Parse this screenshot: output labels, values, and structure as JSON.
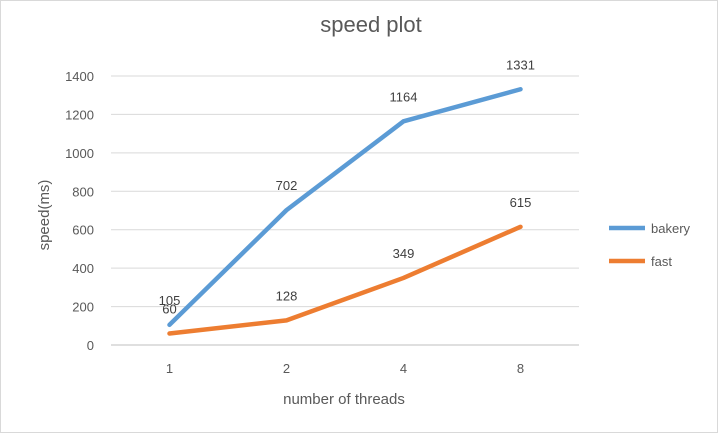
{
  "chart_data": {
    "type": "line",
    "title": "speed plot",
    "xlabel": "number of threads",
    "ylabel": "speed(ms)",
    "categories": [
      "1",
      "2",
      "4",
      "8"
    ],
    "ylim": [
      0,
      1400
    ],
    "yticks": [
      0,
      200,
      400,
      600,
      800,
      1000,
      1200,
      1400
    ],
    "grid": true,
    "legend_position": "right",
    "series": [
      {
        "name": "bakery",
        "values": [
          105,
          702,
          1164,
          1331
        ],
        "color": "#5b9bd5"
      },
      {
        "name": "fast",
        "values": [
          60,
          128,
          349,
          615
        ],
        "color": "#ed7d31"
      }
    ]
  }
}
